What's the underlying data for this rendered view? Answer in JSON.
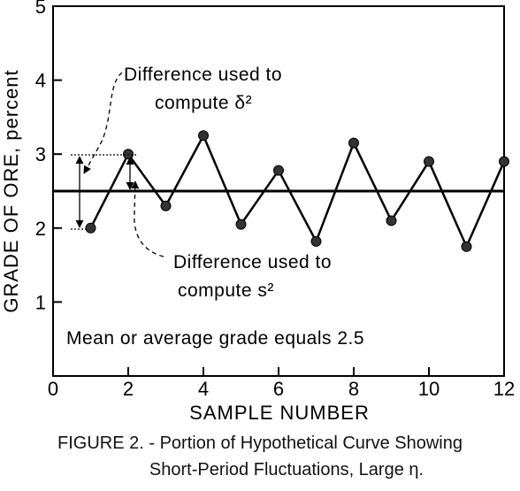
{
  "chart_data": {
    "type": "line",
    "title": "",
    "xlabel": "SAMPLE NUMBER",
    "ylabel": "GRADE OF ORE, percent",
    "xlim": [
      0,
      12
    ],
    "ylim": [
      0,
      5
    ],
    "x_tick_labels": [
      "0",
      "2",
      "4",
      "6",
      "8",
      "10",
      "12"
    ],
    "y_tick_labels": [
      "1",
      "2",
      "3",
      "4",
      "5"
    ],
    "grid": false,
    "series": [
      {
        "x": [
          1,
          2,
          3,
          4,
          5,
          6,
          7,
          8,
          9,
          10,
          11,
          12
        ],
        "y": [
          2.0,
          3.0,
          2.3,
          3.25,
          2.05,
          2.78,
          1.82,
          3.15,
          2.1,
          2.9,
          1.75,
          2.9
        ]
      }
    ],
    "mean_line": {
      "y": 2.5
    },
    "annotations": {
      "delta": {
        "line1": "Difference used to",
        "line2": "compute δ²"
      },
      "s": {
        "line1": "Difference used to",
        "line2": "compute s²"
      },
      "mean": "Mean or average grade equals 2.5"
    }
  },
  "caption": {
    "line1": "FIGURE 2. - Portion of Hypothetical Curve Showing",
    "line2": "Short-Period Fluctuations, Large η."
  }
}
